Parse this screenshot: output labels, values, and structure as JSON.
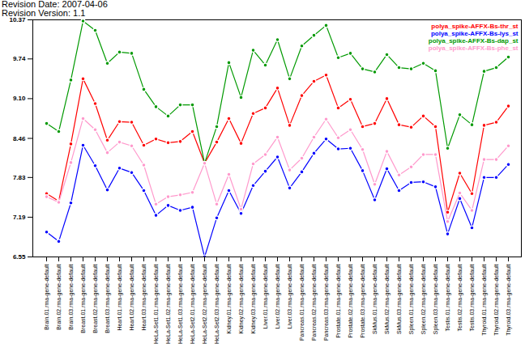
{
  "chart_data": {
    "type": "line",
    "title": "Revision Date: 2007-04-06",
    "subtitle": "Revision Version: 1.1",
    "categories": [
      "Brain.01.rma-gene-default",
      "Brain.02.rma-gene-default",
      "Brain.03.rma-gene-default",
      "Breast.01.rma-gene-default",
      "Breast.02.rma-gene-default",
      "Breast.03.rma-gene-default",
      "Heart.01.rma-gene-default",
      "Heart.02.rma-gene-default",
      "Heart.03.rma-gene-default",
      "HeLa-Set1.01.rma-gene-default",
      "HeLa-Set1.02.rma-gene-default",
      "HeLa-Set1.03.rma-gene-default",
      "HeLa-Set2.01.rma-gene-default",
      "HeLa-Set2.02.rma-gene-default",
      "HeLa-Set2.03.rma-gene-default",
      "Kidney.01.rma-gene-default",
      "Kidney.02.rma-gene-default",
      "Kidney.03.rma-gene-default",
      "Liver.01.rma-gene-default",
      "Liver.02.rma-gene-default",
      "Liver.03.rma-gene-default",
      "Pancreas.01.rma-gene-default",
      "Pancreas.02.rma-gene-default",
      "Pancreas.03.rma-gene-default",
      "Prostate.01.rma-gene-default",
      "Prostate.02.rma-gene-default",
      "Prostate.03.rma-gene-default",
      "SkMus.01.rma-gene-default",
      "SkMus.02.rma-gene-default",
      "SkMus.03.rma-gene-default",
      "Spleen.01.rma-gene-default",
      "Spleen.02.rma-gene-default",
      "Spleen.03.rma-gene-default",
      "Testis.01.rma-gene-default",
      "Testis.02.rma-gene-default",
      "Testis.03.rma-gene-default",
      "Thyroid.01.rma-gene-default",
      "Thyroid.02.rma-gene-default",
      "Thyroid.03.rma-gene-default"
    ],
    "series": [
      {
        "name": "polya_spike-AFFX-Bs-thr_st",
        "color": "#ff0000",
        "values": [
          7.57,
          7.45,
          8.37,
          9.42,
          9.02,
          8.43,
          8.73,
          8.72,
          8.35,
          8.45,
          8.39,
          8.41,
          8.57,
          8.06,
          8.4,
          8.78,
          8.38,
          8.86,
          8.95,
          9.27,
          8.67,
          9.15,
          9.38,
          9.48,
          8.95,
          9.09,
          8.65,
          8.7,
          9.1,
          8.68,
          8.64,
          8.82,
          8.65,
          7.27,
          7.9,
          7.57,
          8.67,
          8.72,
          8.98
        ]
      },
      {
        "name": "polya_spike-AFFX-Bs-lys_st",
        "color": "#0000ff",
        "values": [
          6.95,
          6.8,
          7.42,
          8.35,
          8.02,
          7.63,
          7.98,
          7.91,
          7.62,
          7.22,
          7.38,
          7.3,
          7.35,
          6.55,
          7.18,
          7.62,
          7.25,
          7.7,
          7.93,
          8.16,
          7.66,
          7.92,
          8.22,
          8.45,
          8.29,
          8.3,
          7.94,
          7.47,
          7.97,
          7.62,
          7.75,
          7.76,
          7.68,
          6.92,
          7.49,
          7.02,
          7.83,
          7.83,
          8.04
        ]
      },
      {
        "name": "polya_spike-AFFX-Bs-dap_st",
        "color": "#009900",
        "values": [
          8.7,
          8.57,
          9.4,
          10.35,
          10.2,
          9.67,
          9.85,
          9.83,
          9.25,
          8.97,
          8.82,
          9.0,
          9.0,
          8.06,
          8.65,
          9.68,
          9.12,
          9.88,
          9.64,
          10.05,
          9.42,
          9.95,
          10.12,
          10.28,
          9.76,
          9.83,
          9.58,
          9.53,
          9.81,
          9.6,
          9.58,
          9.67,
          9.55,
          8.3,
          8.84,
          8.68,
          9.54,
          9.6,
          9.77
        ]
      },
      {
        "name": "polya_spike-AFFX-Bs-phe_st",
        "color": "#ff99cc",
        "values": [
          7.52,
          7.43,
          8.07,
          8.78,
          8.6,
          8.23,
          8.4,
          8.34,
          8.03,
          7.4,
          7.52,
          7.55,
          7.59,
          8.06,
          7.4,
          7.88,
          7.32,
          8.05,
          8.2,
          8.48,
          7.95,
          8.14,
          8.48,
          8.77,
          8.47,
          8.6,
          8.28,
          7.72,
          8.25,
          7.87,
          8.0,
          8.2,
          8.2,
          7.12,
          7.58,
          7.3,
          8.12,
          8.12,
          8.34
        ]
      }
    ],
    "ylim": [
      6.55,
      10.37
    ],
    "yticks": [
      6.55,
      7.19,
      7.83,
      8.46,
      {
        "value": 9.1,
        "label": "9.10"
      },
      9.74,
      10.37
    ],
    "grid": false,
    "legend": "top-right",
    "marker": "circle"
  }
}
